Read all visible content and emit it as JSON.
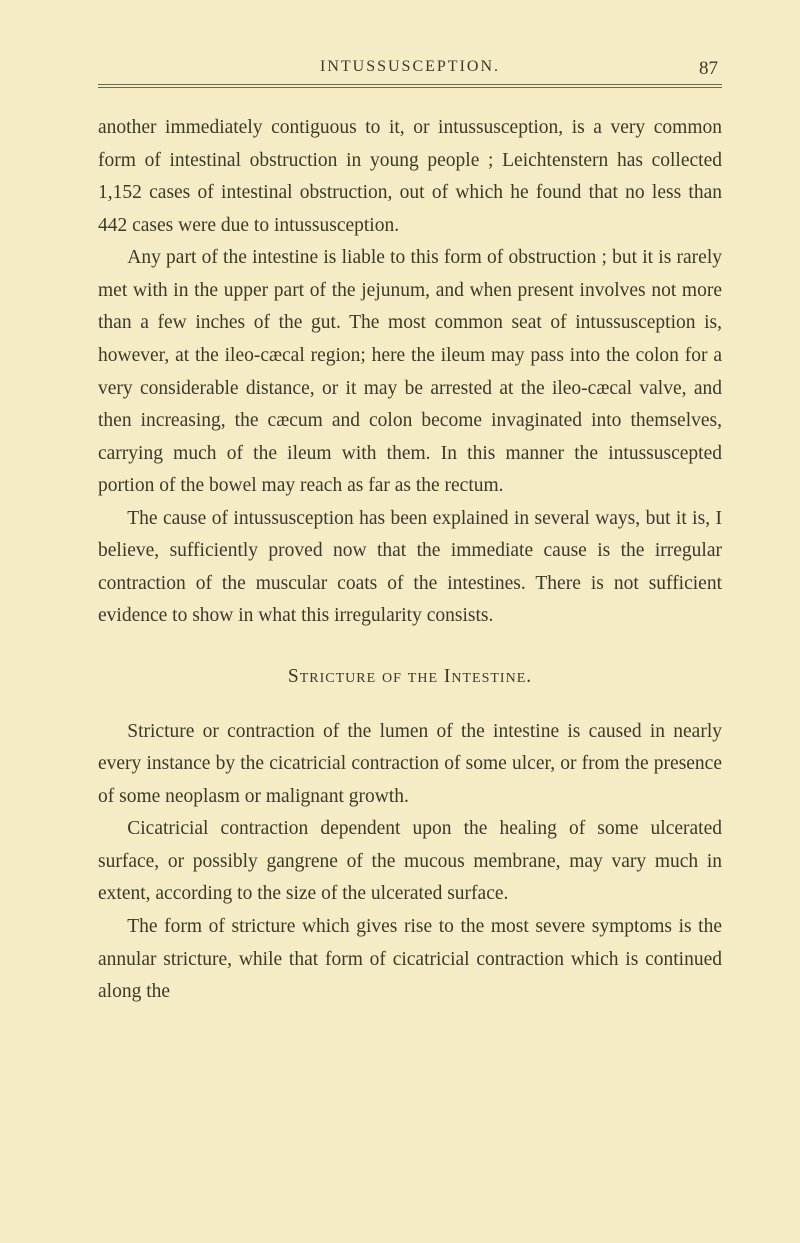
{
  "header": {
    "running_title": "INTUSSUSCEPTION.",
    "page_number": "87"
  },
  "paragraphs": {
    "p1": "another immediately contiguous to it, or intussusception, is a very common form of intestinal obstruction in young people ; Leichtenstern has collected 1,152 cases of intestinal obstruction, out of which he found that no less than 442 cases were due to intussusception.",
    "p2": "Any part of the intestine is liable to this form of obstruction ; but it is rarely met with in the upper part of the jejunum, and when present involves not more than a few inches of the gut. The most common seat of intussusception is, however, at the ileo-cæcal region; here the ileum may pass into the colon for a very considerable distance, or it may be arrested at the ileo-cæcal valve, and then increasing, the cæcum and colon become invaginated into themselves, carrying much of the ileum with them. In this manner the intussuscepted portion of the bowel may reach as far as the rectum.",
    "p3": "The cause of intussusception has been explained in several ways, but it is, I believe, sufficiently proved now that the immediate cause is the irregular contraction of the muscular coats of the intestines. There is not sufficient evidence to show in what this irregularity consists.",
    "heading": "Stricture of the Intestine.",
    "p4": "Stricture or contraction of the lumen of the intestine is caused in nearly every instance by the cicatricial contraction of some ulcer, or from the presence of some neoplasm or malignant growth.",
    "p5": "Cicatricial contraction dependent upon the healing of some ulcerated surface, or possibly gangrene of the mucous membrane, may vary much in extent, according to the size of the ulcerated surface.",
    "p6": "The form of stricture which gives rise to the most severe symptoms is the annular stricture, while that form of cicatricial contraction which is continued along the"
  }
}
